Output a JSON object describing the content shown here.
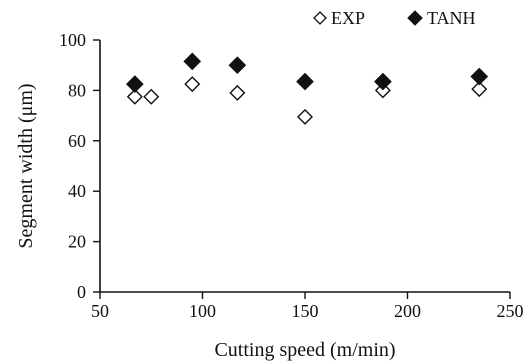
{
  "chart_data": {
    "type": "scatter",
    "title": "",
    "xlabel": "Cutting speed (m/min)",
    "ylabel": "Segment width (μm)",
    "xlim": [
      50,
      250
    ],
    "ylim": [
      0,
      100
    ],
    "x_ticks": [
      50,
      100,
      150,
      200,
      250
    ],
    "y_ticks": [
      0,
      20,
      40,
      60,
      80,
      100
    ],
    "grid": false,
    "legend_position": "top-right",
    "series": [
      {
        "name": "EXP",
        "marker": "open-diamond",
        "color": "#111111",
        "points": [
          {
            "x": 67,
            "y": 77.5
          },
          {
            "x": 75,
            "y": 77.5
          },
          {
            "x": 95,
            "y": 82.5
          },
          {
            "x": 117,
            "y": 79
          },
          {
            "x": 150,
            "y": 69.5
          },
          {
            "x": 188,
            "y": 80
          },
          {
            "x": 235,
            "y": 80.5
          }
        ]
      },
      {
        "name": "TANH",
        "marker": "filled-diamond",
        "color": "#111111",
        "points": [
          {
            "x": 67,
            "y": 82.5
          },
          {
            "x": 95,
            "y": 91.5
          },
          {
            "x": 117,
            "y": 90
          },
          {
            "x": 150,
            "y": 83.5
          },
          {
            "x": 188,
            "y": 83.5
          },
          {
            "x": 235,
            "y": 85.5
          }
        ]
      }
    ]
  }
}
